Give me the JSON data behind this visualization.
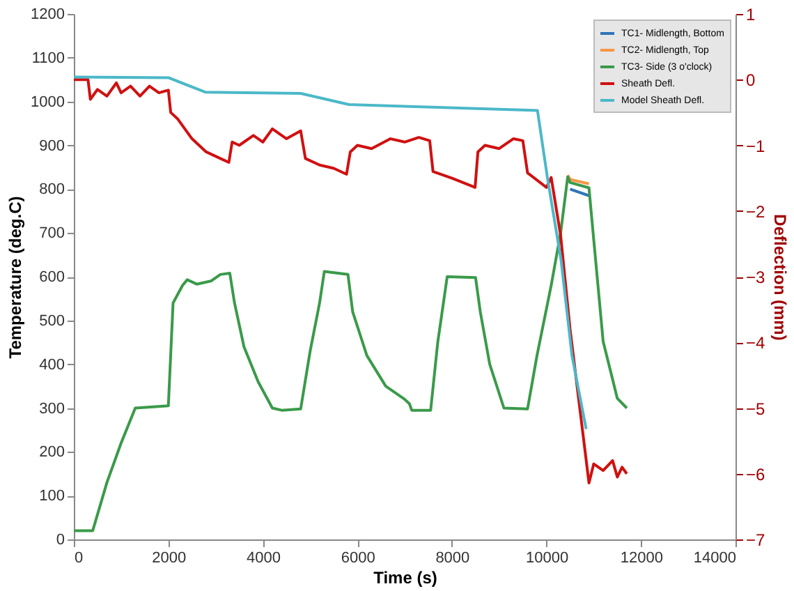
{
  "chart_data": {
    "type": "line",
    "xlabel": "Time (s)",
    "ylabel": "Temperature (deg.C)",
    "y2label": "Deflection (mm)",
    "xlim": [
      0,
      14000
    ],
    "xticks": [
      0,
      2000,
      4000,
      6000,
      8000,
      10000,
      12000,
      14000
    ],
    "ylim": [
      0,
      1200
    ],
    "yticks": [
      0,
      100,
      200,
      300,
      400,
      500,
      600,
      700,
      800,
      900,
      1000,
      1100,
      1200
    ],
    "y2lim": [
      -7,
      1
    ],
    "y2ticks": [
      -7,
      -6,
      -5,
      -4,
      -3,
      -2,
      -1,
      0,
      1
    ],
    "grid": false,
    "legend": "top right",
    "line_style": "solid",
    "marker": "none",
    "series": [
      {
        "name": "TC1- Midlength, Bottom",
        "color": "#2e75b6",
        "x": [
          10500,
          10900
        ],
        "values": [
          800,
          785
        ]
      },
      {
        "name": "TC2- Midlength, Top",
        "color": "#f79646",
        "x": [
          10450,
          10500,
          10900
        ],
        "values": [
          832,
          822,
          812
        ]
      },
      {
        "name": "TC3- Side (3 o'clock)",
        "color": "#3a9a4a",
        "x": [
          0,
          400,
          700,
          1000,
          1300,
          2000,
          2100,
          2300,
          2400,
          2600,
          2900,
          3100,
          3300,
          3400,
          3600,
          3900,
          4200,
          4400,
          4800,
          5000,
          5200,
          5300,
          5800,
          5900,
          6200,
          6600,
          7000,
          7100,
          7150,
          7550,
          7700,
          7900,
          8500,
          8600,
          8800,
          9100,
          9600,
          9800,
          10100,
          10300,
          10450,
          10500,
          10900,
          11000,
          11200,
          11500,
          11700
        ],
        "values": [
          20,
          20,
          130,
          220,
          300,
          305,
          540,
          580,
          593,
          583,
          590,
          605,
          608,
          540,
          440,
          360,
          300,
          295,
          298,
          430,
          540,
          612,
          605,
          520,
          420,
          350,
          320,
          310,
          295,
          295,
          450,
          600,
          598,
          520,
          400,
          300,
          298,
          420,
          580,
          700,
          828,
          815,
          803,
          685,
          452,
          322,
          300
        ]
      },
      {
        "name": "Sheath Defl.",
        "color": "#d01010",
        "axis": "y2",
        "x": [
          0,
          300,
          350,
          500,
          700,
          900,
          1000,
          1200,
          1400,
          1600,
          1800,
          2000,
          2050,
          2200,
          2500,
          2800,
          3100,
          3280,
          3350,
          3500,
          3800,
          4000,
          4200,
          4500,
          4800,
          4900,
          5200,
          5500,
          5770,
          5850,
          6000,
          6300,
          6700,
          7000,
          7300,
          7530,
          7600,
          8000,
          8490,
          8550,
          8700,
          9000,
          9300,
          9500,
          9600,
          10000,
          10100,
          10300,
          10500,
          10700,
          10900,
          11000,
          11200,
          11400,
          11500,
          11600,
          11700
        ],
        "values": [
          0,
          0,
          -0.3,
          -0.15,
          -0.25,
          -0.05,
          -0.2,
          -0.1,
          -0.25,
          -0.1,
          -0.2,
          -0.16,
          -0.5,
          -0.6,
          -0.9,
          -1.1,
          -1.2,
          -1.26,
          -0.95,
          -1.0,
          -0.85,
          -0.95,
          -0.75,
          -0.9,
          -0.78,
          -1.2,
          -1.3,
          -1.35,
          -1.44,
          -1.1,
          -1.0,
          -1.05,
          -0.9,
          -0.95,
          -0.88,
          -0.93,
          -1.4,
          -1.5,
          -1.64,
          -1.1,
          -1.0,
          -1.05,
          -0.9,
          -0.93,
          -1.42,
          -1.64,
          -1.49,
          -2.37,
          -3.8,
          -4.97,
          -6.14,
          -5.85,
          -5.95,
          -5.8,
          -6.05,
          -5.9,
          -6.0
        ]
      },
      {
        "name": "Model Sheath Defl.",
        "color": "#4bb8c8",
        "axis": "y2",
        "x": [
          0,
          2000,
          2780,
          4800,
          5820,
          9810,
          10020,
          10310,
          10540,
          10840
        ],
        "values": [
          0.04,
          0.03,
          -0.19,
          -0.21,
          -0.38,
          -0.47,
          -1.49,
          -2.75,
          -4.2,
          -5.32
        ]
      }
    ]
  }
}
